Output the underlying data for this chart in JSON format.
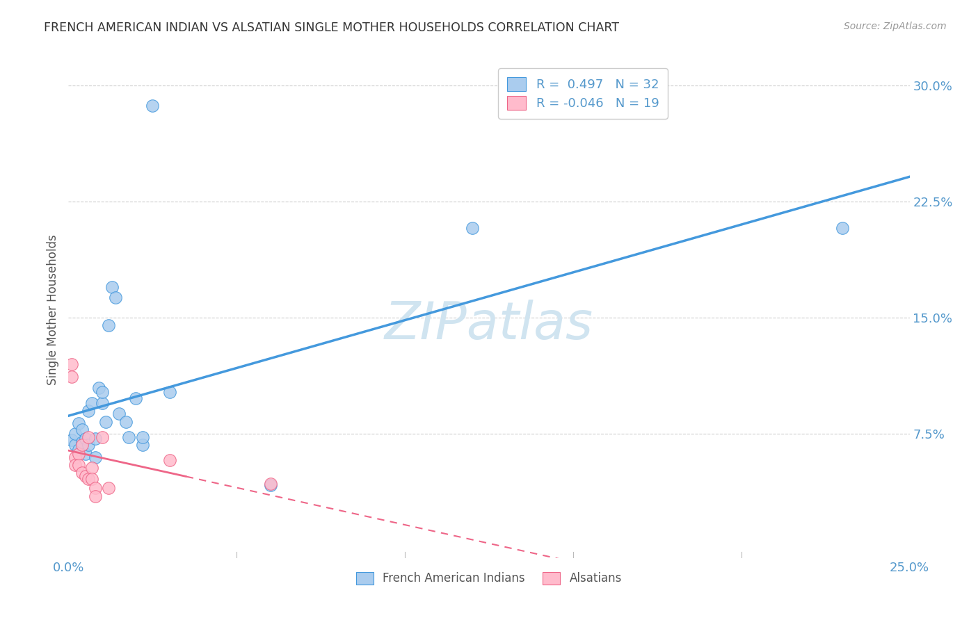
{
  "title": "FRENCH AMERICAN INDIAN VS ALSATIAN SINGLE MOTHER HOUSEHOLDS CORRELATION CHART",
  "source": "Source: ZipAtlas.com",
  "ylabel": "Single Mother Households",
  "xlim": [
    0.0,
    0.25
  ],
  "ylim": [
    -0.005,
    0.315
  ],
  "xticks": [
    0.0,
    0.05,
    0.1,
    0.15,
    0.2,
    0.25
  ],
  "yticks": [
    0.075,
    0.15,
    0.225,
    0.3
  ],
  "xticklabels": [
    "0.0%",
    "",
    "",
    "",
    "",
    "25.0%"
  ],
  "yticklabels": [
    "7.5%",
    "15.0%",
    "22.5%",
    "30.0%"
  ],
  "blue_R": 0.497,
  "blue_N": 32,
  "pink_R": -0.046,
  "pink_N": 19,
  "blue_scatter": [
    [
      0.001,
      0.071
    ],
    [
      0.002,
      0.068
    ],
    [
      0.002,
      0.075
    ],
    [
      0.003,
      0.082
    ],
    [
      0.003,
      0.065
    ],
    [
      0.004,
      0.07
    ],
    [
      0.004,
      0.078
    ],
    [
      0.005,
      0.072
    ],
    [
      0.005,
      0.062
    ],
    [
      0.006,
      0.068
    ],
    [
      0.006,
      0.09
    ],
    [
      0.007,
      0.095
    ],
    [
      0.008,
      0.072
    ],
    [
      0.008,
      0.06
    ],
    [
      0.009,
      0.105
    ],
    [
      0.01,
      0.095
    ],
    [
      0.01,
      0.102
    ],
    [
      0.011,
      0.083
    ],
    [
      0.012,
      0.145
    ],
    [
      0.013,
      0.17
    ],
    [
      0.014,
      0.163
    ],
    [
      0.015,
      0.088
    ],
    [
      0.017,
      0.083
    ],
    [
      0.018,
      0.073
    ],
    [
      0.02,
      0.098
    ],
    [
      0.022,
      0.068
    ],
    [
      0.022,
      0.073
    ],
    [
      0.025,
      0.287
    ],
    [
      0.03,
      0.102
    ],
    [
      0.06,
      0.042
    ],
    [
      0.12,
      0.208
    ],
    [
      0.23,
      0.208
    ]
  ],
  "pink_scatter": [
    [
      0.001,
      0.112
    ],
    [
      0.001,
      0.12
    ],
    [
      0.002,
      0.06
    ],
    [
      0.002,
      0.055
    ],
    [
      0.003,
      0.062
    ],
    [
      0.003,
      0.055
    ],
    [
      0.004,
      0.068
    ],
    [
      0.004,
      0.05
    ],
    [
      0.005,
      0.048
    ],
    [
      0.006,
      0.046
    ],
    [
      0.006,
      0.073
    ],
    [
      0.007,
      0.053
    ],
    [
      0.007,
      0.046
    ],
    [
      0.008,
      0.04
    ],
    [
      0.008,
      0.035
    ],
    [
      0.01,
      0.073
    ],
    [
      0.012,
      0.04
    ],
    [
      0.03,
      0.058
    ],
    [
      0.06,
      0.043
    ]
  ],
  "blue_line_color": "#4499dd",
  "pink_line_color": "#ee6688",
  "blue_scatter_facecolor": "#aaccee",
  "pink_scatter_facecolor": "#ffbbcc",
  "background_color": "#ffffff",
  "grid_color": "#cccccc",
  "watermark_text": "ZIPatlas",
  "watermark_color": "#d0e4f0",
  "axis_tick_color": "#5599cc",
  "ylabel_color": "#555555",
  "title_color": "#333333",
  "source_color": "#999999"
}
